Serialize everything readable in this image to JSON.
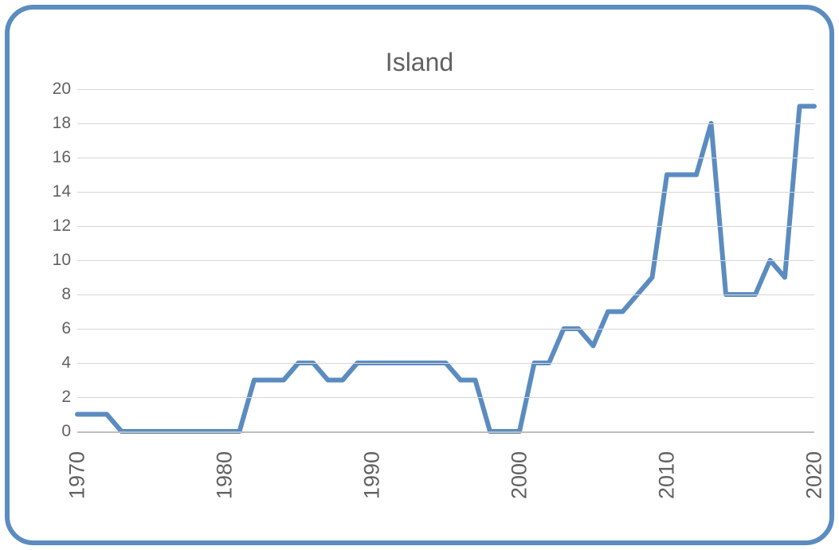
{
  "chart": {
    "type": "line",
    "title": "Island",
    "title_fontsize": 32,
    "title_color": "#616161",
    "background_color": "#ffffff",
    "frame_border_color": "#5b8cc0",
    "frame_border_width": 6,
    "frame_border_radius": 36,
    "grid_color": "#d7d7d7",
    "axis_color": "#bdbdbd",
    "label_color": "#616161",
    "ylabel_fontsize": 21,
    "xlabel_fontsize": 27,
    "xlabel_rotation_deg": -90,
    "xlim": [
      1970,
      2020
    ],
    "ylim": [
      0,
      20
    ],
    "ytick_step": 2,
    "yticks": [
      0,
      2,
      4,
      6,
      8,
      10,
      12,
      14,
      16,
      18,
      20
    ],
    "xticks": [
      1970,
      1980,
      1990,
      2000,
      2010,
      2020
    ],
    "line_color": "#5b8cc0",
    "line_width": 6,
    "x": [
      1970,
      1971,
      1972,
      1973,
      1974,
      1975,
      1976,
      1977,
      1978,
      1979,
      1980,
      1981,
      1982,
      1983,
      1984,
      1985,
      1986,
      1987,
      1988,
      1989,
      1990,
      1991,
      1992,
      1993,
      1994,
      1995,
      1996,
      1997,
      1998,
      1999,
      2000,
      2001,
      2002,
      2003,
      2004,
      2005,
      2006,
      2007,
      2008,
      2009,
      2010,
      2011,
      2012,
      2013,
      2014,
      2015,
      2016,
      2017,
      2018,
      2019,
      2020
    ],
    "y": [
      1,
      1,
      1,
      0,
      0,
      0,
      0,
      0,
      0,
      0,
      0,
      0,
      3,
      3,
      3,
      4,
      4,
      3,
      3,
      4,
      4,
      4,
      4,
      4,
      4,
      4,
      3,
      3,
      0,
      0,
      0,
      4,
      4,
      6,
      6,
      5,
      7,
      7,
      8,
      9,
      15,
      15,
      15,
      18,
      8,
      8,
      8,
      10,
      9,
      19,
      19
    ]
  }
}
